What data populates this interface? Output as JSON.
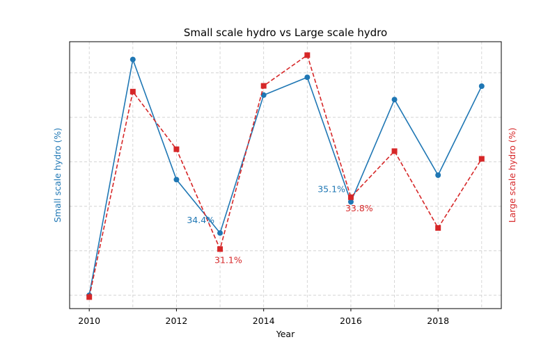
{
  "chart_data": {
    "type": "line",
    "title": "Small scale hydro vs Large scale hydro",
    "xlabel": "Year",
    "ylabel_left": "Small scale hydro (%)",
    "ylabel_right": "Large scale hydro (%)",
    "x": [
      2010,
      2011,
      2012,
      2013,
      2014,
      2015,
      2016,
      2017,
      2018,
      2019
    ],
    "x_ticks": [
      "2010",
      "2012",
      "2014",
      "2016",
      "2018"
    ],
    "xlim": [
      2009.55,
      2019.45
    ],
    "grid": true,
    "series": [
      {
        "name": "Small scale hydro",
        "axis": "left",
        "color": "#1f77b4",
        "marker": "circle",
        "line_style": "solid",
        "values": [
          33.0,
          38.3,
          35.6,
          34.4,
          37.5,
          37.9,
          35.1,
          37.4,
          35.7,
          37.7
        ]
      },
      {
        "name": "Large scale hydro",
        "axis": "right",
        "color": "#d62728",
        "marker": "square",
        "line_style": "dashed",
        "values": [
          28.6,
          39.3,
          36.3,
          31.1,
          39.6,
          41.2,
          33.8,
          36.2,
          32.2,
          35.8
        ]
      }
    ],
    "y_left_lim": [
      32.7,
      38.7
    ],
    "y_right_lim": [
      28.0,
      41.9
    ],
    "annotations": [
      {
        "series": 0,
        "x": 2013,
        "label": "34.4%",
        "position": "left"
      },
      {
        "series": 1,
        "x": 2013,
        "label": "31.1%",
        "position": "below"
      },
      {
        "series": 0,
        "x": 2016,
        "label": "35.1%",
        "position": "left"
      },
      {
        "series": 1,
        "x": 2016,
        "label": "33.8%",
        "position": "below"
      }
    ]
  }
}
